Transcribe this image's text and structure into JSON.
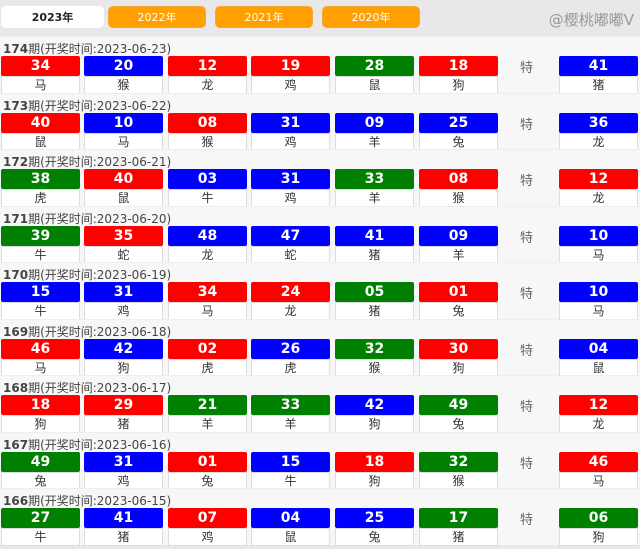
{
  "tabs": [
    "2023年",
    "2022年",
    "2021年",
    "2020年"
  ],
  "active_tab": 0,
  "special_label": "特",
  "header_prefix": "期(开奖时间:",
  "header_suffix": ")",
  "colors": {
    "red": "#ff0000",
    "blue": "#0000ff",
    "green": "#008000"
  },
  "watermark": "@樱桃嘟嘟V",
  "draws": [
    {
      "issue": "174",
      "date": "2023-06-23",
      "balls": [
        [
          "34",
          "red",
          "马"
        ],
        [
          "20",
          "blue",
          "猴"
        ],
        [
          "12",
          "red",
          "龙"
        ],
        [
          "19",
          "red",
          "鸡"
        ],
        [
          "28",
          "green",
          "鼠"
        ],
        [
          "18",
          "red",
          "狗"
        ]
      ],
      "special": [
        "41",
        "blue",
        "猪"
      ]
    },
    {
      "issue": "173",
      "date": "2023-06-22",
      "balls": [
        [
          "40",
          "red",
          "鼠"
        ],
        [
          "10",
          "blue",
          "马"
        ],
        [
          "08",
          "red",
          "猴"
        ],
        [
          "31",
          "blue",
          "鸡"
        ],
        [
          "09",
          "blue",
          "羊"
        ],
        [
          "25",
          "blue",
          "兔"
        ]
      ],
      "special": [
        "36",
        "blue",
        "龙"
      ]
    },
    {
      "issue": "172",
      "date": "2023-06-21",
      "balls": [
        [
          "38",
          "green",
          "虎"
        ],
        [
          "40",
          "red",
          "鼠"
        ],
        [
          "03",
          "blue",
          "牛"
        ],
        [
          "31",
          "blue",
          "鸡"
        ],
        [
          "33",
          "green",
          "羊"
        ],
        [
          "08",
          "red",
          "猴"
        ]
      ],
      "special": [
        "12",
        "red",
        "龙"
      ]
    },
    {
      "issue": "171",
      "date": "2023-06-20",
      "balls": [
        [
          "39",
          "green",
          "牛"
        ],
        [
          "35",
          "red",
          "蛇"
        ],
        [
          "48",
          "blue",
          "龙"
        ],
        [
          "47",
          "blue",
          "蛇"
        ],
        [
          "41",
          "blue",
          "猪"
        ],
        [
          "09",
          "blue",
          "羊"
        ]
      ],
      "special": [
        "10",
        "blue",
        "马"
      ]
    },
    {
      "issue": "170",
      "date": "2023-06-19",
      "balls": [
        [
          "15",
          "blue",
          "牛"
        ],
        [
          "31",
          "blue",
          "鸡"
        ],
        [
          "34",
          "red",
          "马"
        ],
        [
          "24",
          "red",
          "龙"
        ],
        [
          "05",
          "green",
          "猪"
        ],
        [
          "01",
          "red",
          "兔"
        ]
      ],
      "special": [
        "10",
        "blue",
        "马"
      ]
    },
    {
      "issue": "169",
      "date": "2023-06-18",
      "balls": [
        [
          "46",
          "red",
          "马"
        ],
        [
          "42",
          "blue",
          "狗"
        ],
        [
          "02",
          "red",
          "虎"
        ],
        [
          "26",
          "blue",
          "虎"
        ],
        [
          "32",
          "green",
          "猴"
        ],
        [
          "30",
          "red",
          "狗"
        ]
      ],
      "special": [
        "04",
        "blue",
        "鼠"
      ]
    },
    {
      "issue": "168",
      "date": "2023-06-17",
      "balls": [
        [
          "18",
          "red",
          "狗"
        ],
        [
          "29",
          "red",
          "猪"
        ],
        [
          "21",
          "green",
          "羊"
        ],
        [
          "33",
          "green",
          "羊"
        ],
        [
          "42",
          "blue",
          "狗"
        ],
        [
          "49",
          "green",
          "兔"
        ]
      ],
      "special": [
        "12",
        "red",
        "龙"
      ]
    },
    {
      "issue": "167",
      "date": "2023-06-16",
      "balls": [
        [
          "49",
          "green",
          "兔"
        ],
        [
          "31",
          "blue",
          "鸡"
        ],
        [
          "01",
          "red",
          "兔"
        ],
        [
          "15",
          "blue",
          "牛"
        ],
        [
          "18",
          "red",
          "狗"
        ],
        [
          "32",
          "green",
          "猴"
        ]
      ],
      "special": [
        "46",
        "red",
        "马"
      ]
    },
    {
      "issue": "166",
      "date": "2023-06-15",
      "balls": [
        [
          "27",
          "green",
          "牛"
        ],
        [
          "41",
          "blue",
          "猪"
        ],
        [
          "07",
          "red",
          "鸡"
        ],
        [
          "04",
          "blue",
          "鼠"
        ],
        [
          "25",
          "blue",
          "兔"
        ],
        [
          "17",
          "green",
          "猪"
        ]
      ],
      "special": [
        "06",
        "green",
        "狗"
      ]
    }
  ]
}
